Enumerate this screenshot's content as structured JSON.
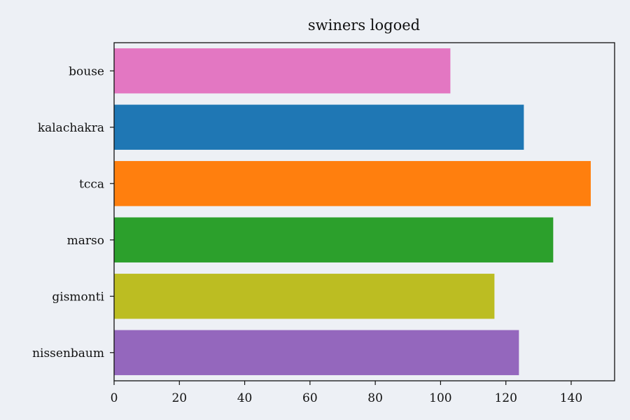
{
  "chart_data": {
    "type": "bar",
    "orientation": "horizontal",
    "title": "swiners logoed",
    "xlabel": "",
    "ylabel": "",
    "categories": [
      "bouse",
      "kalachakra",
      "tcca",
      "marso",
      "gismonti",
      "nissenbaum"
    ],
    "values": [
      103,
      125.5,
      146,
      134.5,
      116.5,
      124
    ],
    "colors": [
      "#e377c2",
      "#1f77b4",
      "#ff7f0e",
      "#2ca02c",
      "#bcbd22",
      "#9467bd"
    ],
    "xlim": [
      0,
      153.3
    ],
    "xticks": [
      0,
      20,
      40,
      60,
      80,
      100,
      120,
      140
    ],
    "grid": false,
    "background": "#edf0f5"
  }
}
